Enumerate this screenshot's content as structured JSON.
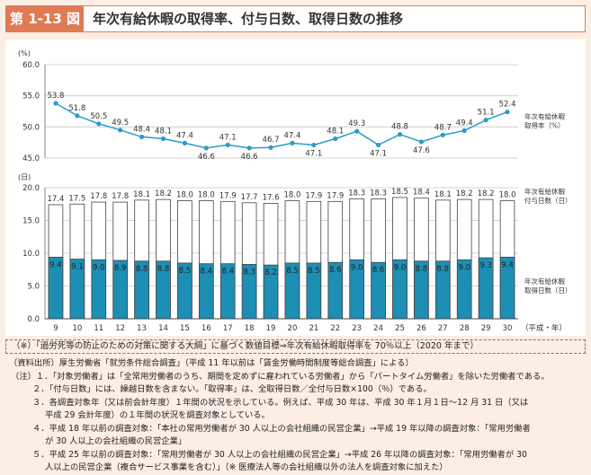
{
  "header": {
    "badge": "第 1-13 図",
    "title": "年次有給休暇の取得率、付与日数、取得日数の推移"
  },
  "chart_data": [
    {
      "type": "line",
      "ylabel": "(%)",
      "ylim": [
        45.0,
        60.0
      ],
      "yticks": [
        "60.0",
        "55.0",
        "50.0",
        "45.0"
      ],
      "x": [
        "9",
        "10",
        "11",
        "12",
        "13",
        "14",
        "15",
        "16",
        "17",
        "18",
        "19",
        "20",
        "21",
        "22",
        "23",
        "24",
        "25",
        "26",
        "27",
        "28",
        "29",
        "30"
      ],
      "series": [
        {
          "name": "年次有給休暇取得率（%）",
          "name_lines": [
            "年次有給休暇",
            "取得率（%）"
          ],
          "values": [
            53.8,
            51.8,
            50.5,
            49.5,
            48.4,
            48.1,
            47.4,
            46.6,
            47.1,
            46.6,
            46.7,
            47.4,
            47.1,
            48.1,
            49.3,
            47.1,
            48.8,
            47.6,
            48.7,
            49.4,
            51.1,
            52.4
          ],
          "labels": [
            "53.8",
            "51.8",
            "50.5",
            "49.5",
            "48.4",
            "48.1",
            "47.4",
            "46.6",
            "47.1",
            "46.6",
            "46.7",
            "47.4",
            "47.1",
            "48.1",
            "49.3",
            "47.1",
            "48.8",
            "47.6",
            "48.7",
            "49.4",
            "51.1",
            "52.4"
          ]
        }
      ]
    },
    {
      "type": "bar",
      "ylabel": "(日)",
      "xlabel": "（平成・年）",
      "ylim": [
        0,
        20.0
      ],
      "yticks": [
        "20.0",
        "15.0",
        "10.0",
        "5.0",
        "0.0"
      ],
      "categories": [
        "9",
        "10",
        "11",
        "12",
        "13",
        "14",
        "15",
        "16",
        "17",
        "18",
        "19",
        "20",
        "21",
        "22",
        "23",
        "24",
        "25",
        "26",
        "27",
        "28",
        "29",
        "30"
      ],
      "series": [
        {
          "name": "年次有給休暇付与日数（日）",
          "name_lines": [
            "年次有給休暇",
            "付与日数（日）"
          ],
          "values": [
            17.4,
            17.5,
            17.8,
            17.8,
            18.1,
            18.2,
            18.0,
            18.0,
            17.9,
            17.7,
            17.6,
            18.0,
            17.9,
            17.9,
            18.3,
            18.3,
            18.5,
            18.4,
            18.1,
            18.2,
            18.2,
            18.0
          ],
          "labels": [
            "17.4",
            "17.5",
            "17.8",
            "17.8",
            "18.1",
            "18.2",
            "18.0",
            "18.0",
            "17.9",
            "17.7",
            "17.6",
            "18.0",
            "17.9",
            "17.9",
            "18.3",
            "18.3",
            "18.5",
            "18.4",
            "18.1",
            "18.2",
            "18.2",
            "18.0"
          ]
        },
        {
          "name": "年次有給休暇取得日数（日）",
          "name_lines": [
            "年次有給休暇",
            "取得日数（日）"
          ],
          "values": [
            9.4,
            9.1,
            9.0,
            8.9,
            8.8,
            8.8,
            8.5,
            8.4,
            8.4,
            8.3,
            8.2,
            8.5,
            8.5,
            8.6,
            9.0,
            8.6,
            9.0,
            8.8,
            8.8,
            9.0,
            9.3,
            9.4
          ],
          "labels": [
            "9.4",
            "9.1",
            "9.0",
            "8.9",
            "8.8",
            "8.8",
            "8.5",
            "8.4",
            "8.4",
            "8.3",
            "8.2",
            "8.5",
            "8.5",
            "8.6",
            "9.0",
            "8.6",
            "9.0",
            "8.8",
            "8.8",
            "9.0",
            "9.3",
            "9.4"
          ]
        }
      ],
      "colors": {
        "granted": "#ffffff",
        "taken": "#1d8fb5",
        "outline": "#444444"
      }
    }
  ],
  "policy": "（※）「過労死等の防止のための対策に関する大綱」に基づく数値目標⇒年次有給休暇取得率を 70％以上（2020 年まで）",
  "notes": {
    "source": "（資料出所）厚生労働省「就労条件総合調査」（平成 11 年以前は「賃金労働時間制度等総合調査」による）",
    "n1": "（注）１．「対象労働者」は「全常用労働者のうち、期間を定めずに雇われている労働者」から「パートタイム労働者」を除いた労働者である。",
    "n2": "２．「付与日数」には、繰越日数を含まない。「取得率」は、全取得日数／全付与日数×100（％）である。",
    "n3a": "３．各調査対象年（又は前会計年度）１年間の状況を示している。例えば、平成 30 年は、平成 30 年１月１日〜12 月 31 日（又は",
    "n3b": "平成 29 会計年度）の１年間の状況を調査対象としている。",
    "n4a": "４．平成 18 年以前の調査対象：「本社の常用労働者が 30 人以上の会社組織の民営企業」→平成 19 年以降の調査対象：「常用労働者",
    "n4b": "が 30 人以上の会社組織の民営企業」",
    "n5a": "５．平成 25 年以前の調査対象：「常用労働者が 30 人以上の会社組織の民営企業」→平成 26 年以降の調査対象：「常用労働者が 30",
    "n5b": "人以上の民営企業（複合サービス事業を含む）」（※ 医療法人等の会社組織以外の法人を調査対象に加えた）"
  }
}
